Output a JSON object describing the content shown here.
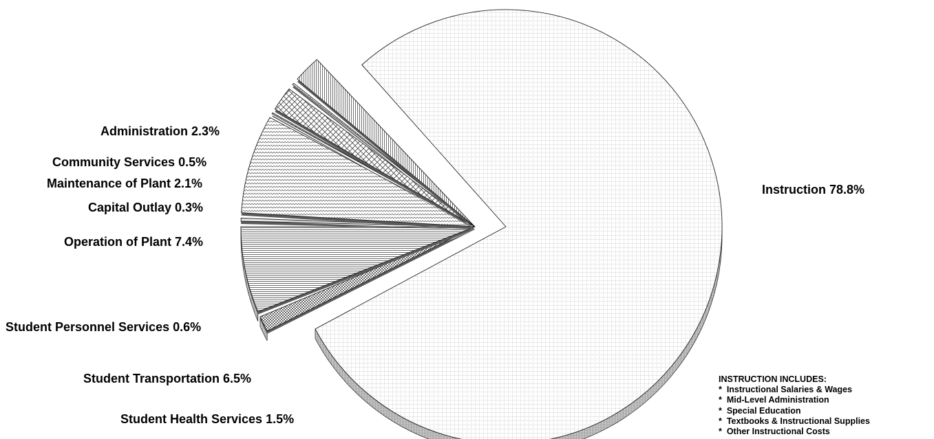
{
  "chart_data": {
    "type": "pie",
    "style": "3d-exploded",
    "slices": [
      {
        "label": "Instruction",
        "value": 78.8,
        "text": "Instruction 78.8%"
      },
      {
        "label": "Student Health Services",
        "value": 1.5,
        "text": "Student Health Services 1.5%"
      },
      {
        "label": "Student Transportation",
        "value": 6.5,
        "text": "Student Transportation 6.5%"
      },
      {
        "label": "Student Personnel Services",
        "value": 0.6,
        "text": "Student Personnel Services 0.6%"
      },
      {
        "label": "Operation of Plant",
        "value": 7.4,
        "text": "Operation of Plant 7.4%"
      },
      {
        "label": "Capital Outlay",
        "value": 0.3,
        "text": "Capital Outlay 0.3%"
      },
      {
        "label": "Maintenance of Plant",
        "value": 2.1,
        "text": "Maintenance of Plant 2.1%"
      },
      {
        "label": "Community Services",
        "value": 0.5,
        "text": "Community Services 0.5%"
      },
      {
        "label": "Administration",
        "value": 2.3,
        "text": "Administration 2.3%"
      }
    ]
  },
  "note": {
    "title": "INSTRUCTION INCLUDES:",
    "items": [
      "Instructional Salaries & Wages",
      "Mid-Level Administration",
      "Special Education",
      "Textbooks & Instructional Supplies",
      "Other Instructional Costs"
    ]
  }
}
